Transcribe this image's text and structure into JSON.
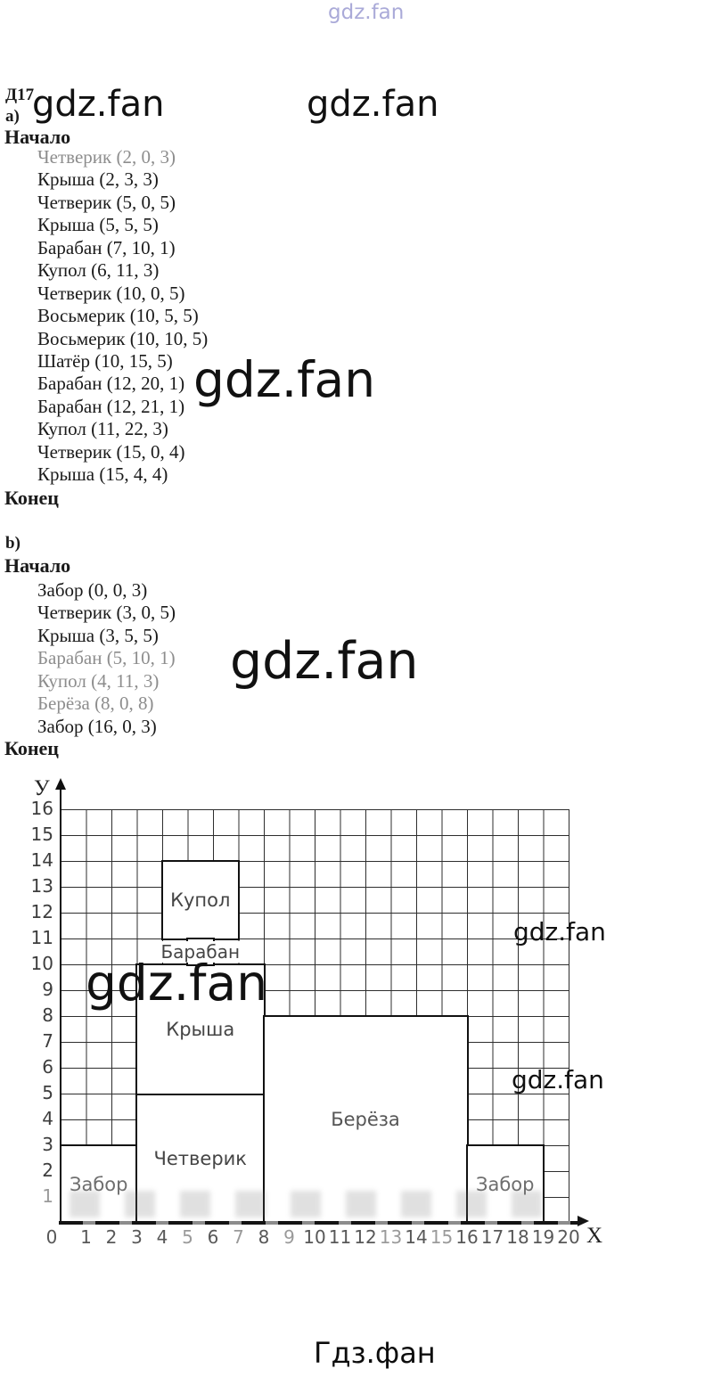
{
  "watermarks": {
    "top": "gdz.fan",
    "header_left": "gdz.fan",
    "header_right": "gdz.fan",
    "big_a": "gdz.fan",
    "big_b": "gdz.fan",
    "chart_big": "gdz.fan",
    "chart_right_upper": "gdz.fan",
    "chart_right_lower": "gdz.fan",
    "footer": "Гдз.фан"
  },
  "task": {
    "id": "Д17",
    "part_a_label": "а)",
    "part_b_label": "b)",
    "begin_label": "Начало",
    "end_label": "Конец"
  },
  "program_a": {
    "items": [
      "Четверик (2, 0, 3)",
      "Крыша (2, 3, 3)",
      "Четверик (5, 0, 5)",
      "Крыша (5, 5, 5)",
      "Барабан (7, 10, 1)",
      "Купол (6, 11, 3)",
      "Четверик (10, 0, 5)",
      "Восьмерик (10, 5, 5)",
      "Восьмерик (10, 10, 5)",
      "Шатёр (10, 15, 5)",
      "Барабан (12, 20, 1)",
      "Барабан (12, 21, 1)",
      "Купол (11, 22, 3)",
      "Четверик (15, 0, 4)",
      "Крыша (15, 4, 4)"
    ]
  },
  "program_b": {
    "items": [
      "Забор (0, 0, 3)",
      "Четверик (3, 0, 5)",
      "Крыша (3, 5, 5)",
      "Барабан (5, 10, 1)",
      "Купол (4, 11, 3)",
      "Берёза (8, 0, 8)",
      "Забор (16, 0, 3)"
    ]
  },
  "chart_data": {
    "type": "diagram",
    "x_axis_label": "X",
    "y_axis_label": "У",
    "x_range": [
      0,
      20
    ],
    "y_range": [
      0,
      16
    ],
    "x_ticks": [
      0,
      1,
      2,
      3,
      4,
      5,
      6,
      7,
      8,
      9,
      10,
      11,
      12,
      13,
      14,
      15,
      16,
      17,
      18,
      19,
      20
    ],
    "y_ticks": [
      1,
      2,
      3,
      4,
      5,
      6,
      7,
      8,
      9,
      10,
      11,
      12,
      13,
      14,
      15,
      16
    ],
    "grid": true,
    "shapes": [
      {
        "label": "Забор",
        "x": 0,
        "y": 0,
        "w": 3,
        "h": 3
      },
      {
        "label": "Четверик",
        "x": 3,
        "y": 0,
        "w": 5,
        "h": 5
      },
      {
        "label": "Крыша",
        "x": 3,
        "y": 5,
        "w": 5,
        "h": 5
      },
      {
        "label": "Барабан",
        "x": 5,
        "y": 10,
        "w": 1,
        "h": 1
      },
      {
        "label": "Купол",
        "x": 4,
        "y": 11,
        "w": 3,
        "h": 3
      },
      {
        "label": "Берёза",
        "x": 8,
        "y": 0,
        "w": 8,
        "h": 8
      },
      {
        "label": "Забор",
        "x": 16,
        "y": 0,
        "w": 3,
        "h": 3
      }
    ]
  }
}
